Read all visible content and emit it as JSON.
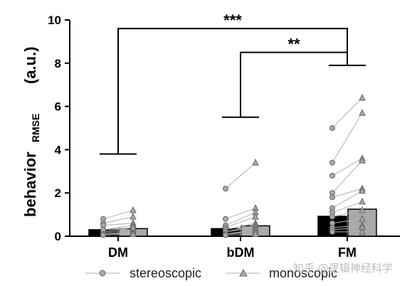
{
  "chart_data": {
    "type": "bar",
    "ylabel_main": "behavior",
    "ylabel_sub": "RMSE",
    "ylabel_unit": "(a.u.)",
    "ylim": [
      0,
      10
    ],
    "yticks": [
      "0",
      "2",
      "4",
      "6",
      "8",
      "10"
    ],
    "categories": [
      "DM",
      "bDM",
      "FM"
    ],
    "series": [
      {
        "name": "stereoscopic",
        "bar_color": "#000000",
        "marker": "circle",
        "values": [
          0.3,
          0.35,
          0.92
        ],
        "points": [
          [
            0.8,
            0.6,
            0.5,
            0.3,
            0.2,
            0.15,
            0.1,
            0.3,
            0.1,
            0.05
          ],
          [
            2.2,
            0.8,
            0.5,
            0.4,
            0.3,
            0.2,
            0.2,
            0.1,
            0.1,
            0.05
          ],
          [
            5.0,
            3.4,
            2.8,
            2.0,
            1.8,
            1.3,
            1.1,
            0.9,
            0.6,
            0.4,
            0.3,
            0.2
          ]
        ]
      },
      {
        "name": "monoscopic",
        "bar_color": "#a9a9a9",
        "marker": "triangle",
        "values": [
          0.35,
          0.48,
          1.25
        ],
        "points": [
          [
            1.2,
            0.9,
            0.6,
            0.5,
            0.4,
            0.3,
            0.2,
            0.4,
            0.15,
            0.1
          ],
          [
            3.4,
            1.3,
            1.1,
            0.9,
            0.6,
            0.5,
            0.4,
            0.3,
            0.2,
            0.1
          ],
          [
            6.4,
            5.7,
            3.6,
            3.5,
            2.2,
            2.1,
            1.6,
            1.2,
            0.8,
            0.5,
            0.4,
            0.2
          ]
        ]
      }
    ],
    "significance": [
      {
        "label": "***",
        "from": "DM",
        "to": "FM"
      },
      {
        "label": "**",
        "from": "bDM",
        "to": "FM"
      }
    ],
    "legend": [
      "stereoscopic",
      "monoscopic"
    ],
    "legend_placement": "bottom"
  },
  "watermark": "知乎 @逻辑神经科学",
  "colors": {
    "axis": "#000000",
    "stereo_bar": "#000000",
    "mono_bar": "#a9a9a9",
    "marker_fill": "#a9a9a9",
    "marker_stroke": "#666666",
    "pair_line": "#b0b0b0"
  }
}
